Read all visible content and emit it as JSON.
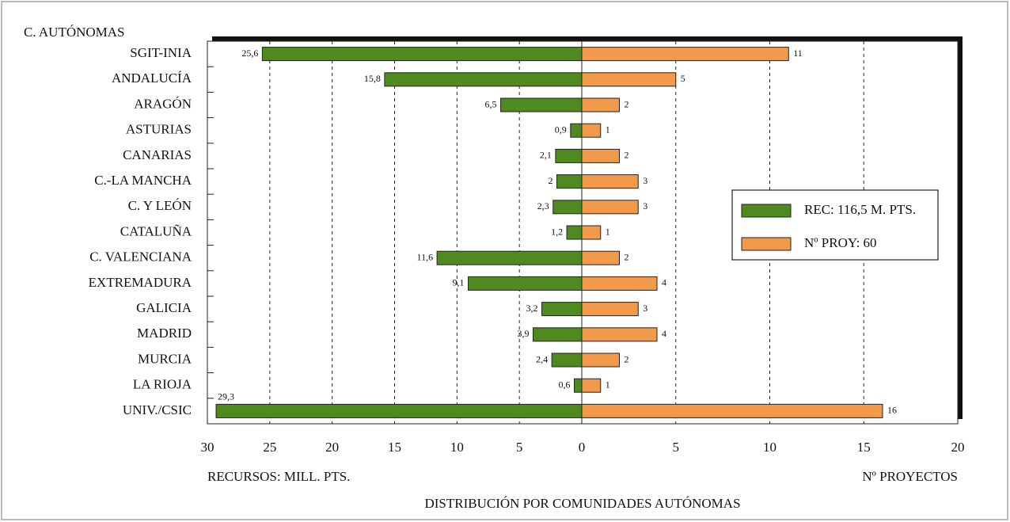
{
  "chart_data": {
    "type": "butterfly",
    "title": "DISTRIBUCIÓN POR COMUNIDADES AUTÓNOMAS",
    "ylabel": "C. AUTÓNOMAS",
    "xlabel": "RECURSOS: MILL. PTS.",
    "x2label": "Nº PROYECTOS",
    "categories": [
      "SGIT-INIA",
      "ANDALUCÍA",
      "ARAGÓN",
      "ASTURIAS",
      "CANARIAS",
      "C.-LA MANCHA",
      "C. Y LEÓN",
      "CATALUÑA",
      "C. VALENCIANA",
      "EXTREMADURA",
      "GALICIA",
      "MADRID",
      "MURCIA",
      "LA RIOJA",
      "UNIV./CSIC"
    ],
    "series": [
      {
        "name": "REC: 116,5 M. PTS.",
        "color": "#4f8a1e",
        "axis": "x",
        "values": [
          25.6,
          15.8,
          6.5,
          0.9,
          2.1,
          2,
          2.3,
          1.2,
          11.6,
          9.1,
          3.2,
          3.9,
          2.4,
          0.6,
          29.3
        ],
        "value_labels": [
          "25,6",
          "15,8",
          "6,5",
          "0,9",
          "2,1",
          "2",
          "2,3",
          "1,2",
          "11,6",
          "9,1",
          "3,2",
          "3,9",
          "2,4",
          "0,6",
          "29,3"
        ]
      },
      {
        "name": "Nº PROY: 60",
        "color": "#f39a4a",
        "axis": "x2",
        "values": [
          11,
          5,
          2,
          1,
          2,
          3,
          3,
          1,
          2,
          4,
          3,
          4,
          2,
          1,
          16
        ]
      }
    ],
    "xlim": [
      30,
      0
    ],
    "xticks": [
      30,
      25,
      20,
      15,
      10,
      5,
      0
    ],
    "x2lim": [
      0,
      20
    ],
    "x2ticks": [
      5,
      10,
      15,
      20
    ],
    "grid": true,
    "legend": "right"
  }
}
